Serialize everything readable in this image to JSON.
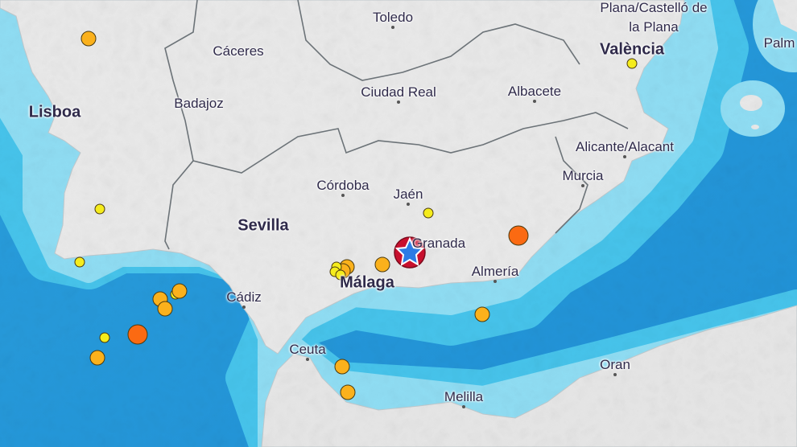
{
  "map": {
    "colors": {
      "land": "#e9e9e9",
      "shelf": "#8fdcf2",
      "mid_sea": "#46c3ea",
      "deep_sea": "#2196d8",
      "small_event": "#f5ec1c",
      "medium_event": "#fbb11c",
      "large_event": "#fb6a12",
      "epicenter_star": "#2c7be5",
      "epicenter_ring": "#c8102e"
    },
    "cities": [
      {
        "name": "Toledo",
        "type": "normal"
      },
      {
        "name": "Plana/Castelló de",
        "type": "normal"
      },
      {
        "name": "la Plana",
        "type": "normal"
      },
      {
        "name": "València",
        "type": "major"
      },
      {
        "name": "Palm",
        "type": "normal"
      },
      {
        "name": "Cáceres",
        "type": "normal"
      },
      {
        "name": "Lisboa",
        "type": "major"
      },
      {
        "name": "Badajoz",
        "type": "normal"
      },
      {
        "name": "Ciudad Real",
        "type": "normal"
      },
      {
        "name": "Albacete",
        "type": "normal"
      },
      {
        "name": "Alicante/Alacant",
        "type": "normal"
      },
      {
        "name": "Murcia",
        "type": "normal"
      },
      {
        "name": "Córdoba",
        "type": "normal"
      },
      {
        "name": "Jaén",
        "type": "normal"
      },
      {
        "name": "Sevilla",
        "type": "major"
      },
      {
        "name": "Granada",
        "type": "normal"
      },
      {
        "name": "Almería",
        "type": "normal"
      },
      {
        "name": "Málaga",
        "type": "major"
      },
      {
        "name": "Cádiz",
        "type": "normal"
      },
      {
        "name": "Ceuta",
        "type": "normal"
      },
      {
        "name": "Oran",
        "type": "normal"
      },
      {
        "name": "Melilla",
        "type": "normal"
      }
    ],
    "events": [
      {
        "category": "medium"
      },
      {
        "category": "small"
      },
      {
        "category": "small"
      },
      {
        "category": "small"
      },
      {
        "category": "small"
      },
      {
        "category": "large"
      },
      {
        "category": "medium"
      },
      {
        "category": "medium"
      },
      {
        "category": "small"
      },
      {
        "category": "small"
      },
      {
        "category": "small"
      },
      {
        "category": "medium"
      },
      {
        "category": "small"
      },
      {
        "category": "medium"
      },
      {
        "category": "medium"
      },
      {
        "category": "medium"
      },
      {
        "category": "small"
      },
      {
        "category": "large"
      },
      {
        "category": "medium"
      },
      {
        "category": "medium"
      },
      {
        "category": "medium"
      },
      {
        "category": "medium"
      },
      {
        "category": "medium"
      }
    ],
    "epicenter": {
      "marker": "star-icon"
    }
  }
}
